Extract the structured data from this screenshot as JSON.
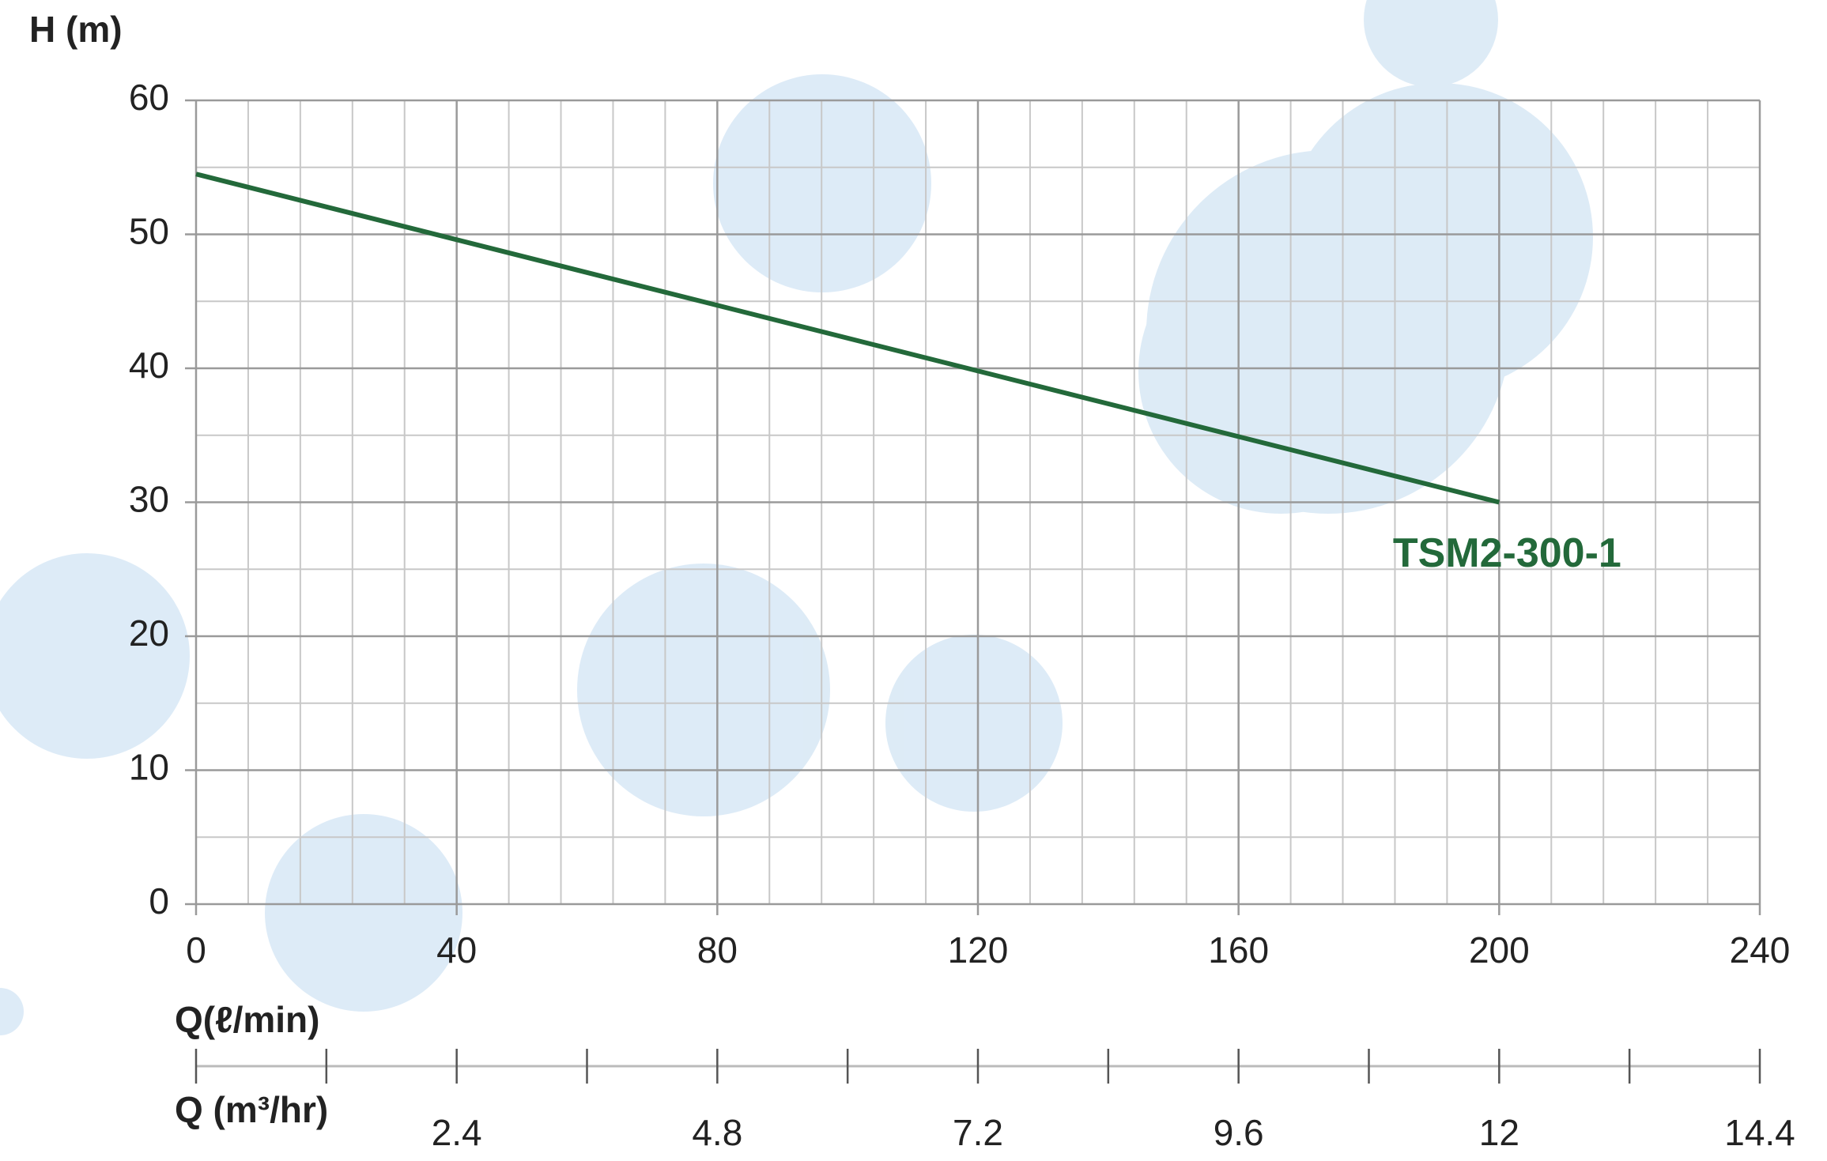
{
  "chart_data": {
    "type": "line",
    "ylabel": "H (m)",
    "xlabel": "Q(ℓ/min)",
    "x2label": "Q (m³/hr)",
    "x": [
      0,
      200
    ],
    "series": [
      {
        "name": "TSM2-300-1",
        "color": "#23693a",
        "values": [
          54.5,
          30
        ]
      }
    ],
    "xlim": [
      0,
      240
    ],
    "xticks": [
      0,
      40,
      80,
      120,
      160,
      200,
      240
    ],
    "ylim": [
      0,
      60
    ],
    "yticks": [
      0,
      10,
      20,
      30,
      40,
      50,
      60
    ],
    "x2lim": [
      0,
      14.4
    ],
    "x2ticks": [
      2.4,
      4.8,
      7.2,
      9.6,
      12,
      14.4
    ],
    "grid": true,
    "minor_divisions_x": 5,
    "minor_divisions_y": 2,
    "minor_divisions_x2": 2
  }
}
